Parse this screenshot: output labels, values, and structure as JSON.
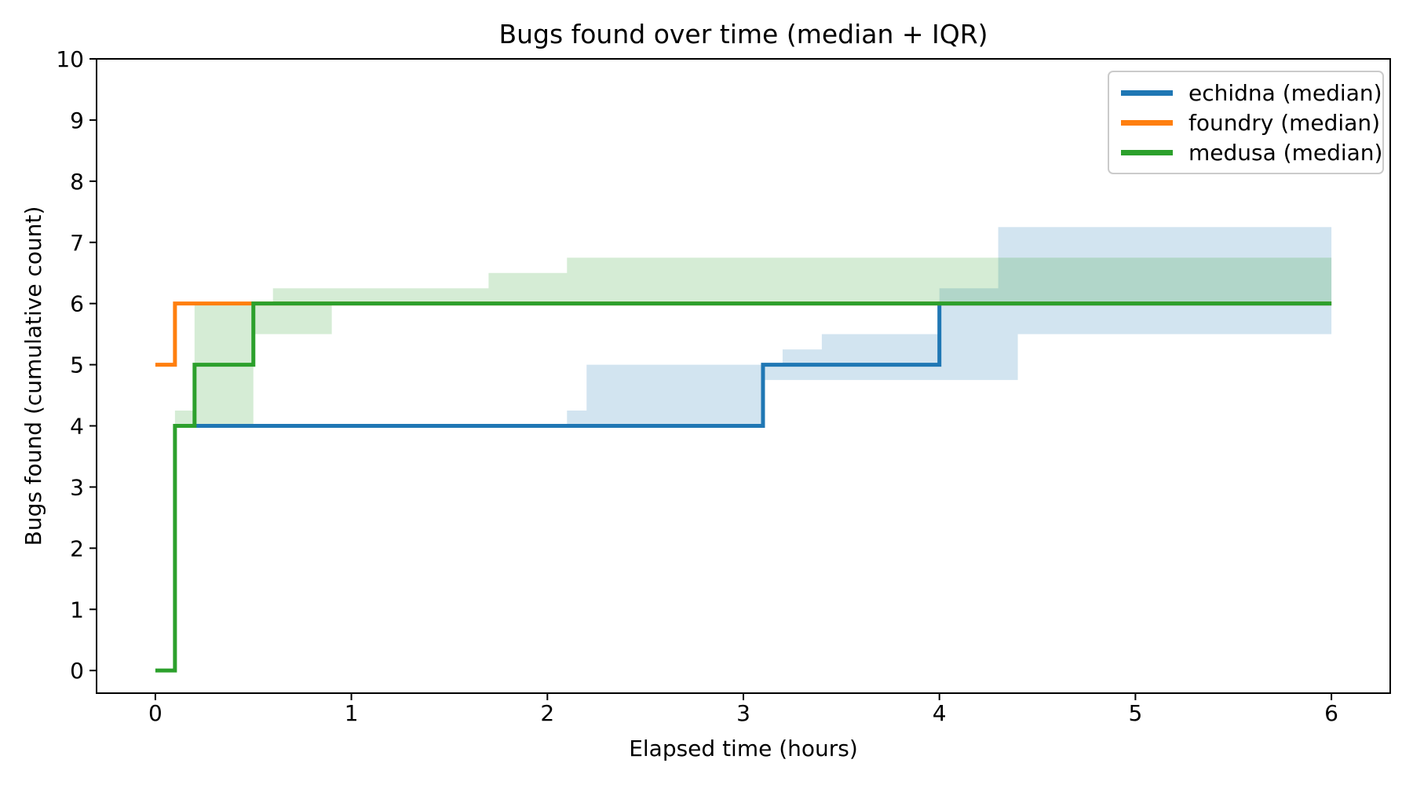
{
  "chart_data": {
    "type": "line",
    "step_mode": "post",
    "title": "Bugs found over time (median + IQR)",
    "xlabel": "Elapsed time (hours)",
    "ylabel": "Bugs found (cumulative count)",
    "xlim": [
      -0.3,
      6.3
    ],
    "ylim": [
      -0.37,
      10
    ],
    "xticks": [
      0,
      1,
      2,
      3,
      4,
      5,
      6
    ],
    "yticks": [
      0,
      1,
      2,
      3,
      4,
      5,
      6,
      7,
      8,
      9,
      10
    ],
    "grid": false,
    "legend_position": "upper right",
    "band_alpha": 0.2,
    "series": [
      {
        "name": "echidna (median)",
        "id": "echidna",
        "color": "#1f77b4",
        "median_steps": [
          [
            0.2,
            4
          ],
          [
            3.1,
            4
          ],
          [
            3.1,
            5
          ],
          [
            4.0,
            5
          ],
          [
            4.0,
            6
          ],
          [
            6.0,
            6
          ]
        ],
        "iqr_band": [
          [
            2.1,
            2.2,
            4.0,
            4.25
          ],
          [
            2.2,
            3.1,
            4.0,
            5.0
          ],
          [
            3.1,
            3.2,
            4.75,
            5.0
          ],
          [
            3.2,
            3.4,
            4.75,
            5.25
          ],
          [
            3.4,
            4.0,
            4.75,
            5.5
          ],
          [
            4.0,
            4.3,
            4.75,
            6.25
          ],
          [
            4.3,
            4.4,
            4.75,
            7.25
          ],
          [
            4.4,
            6.0,
            5.5,
            7.25
          ]
        ]
      },
      {
        "name": "foundry (median)",
        "id": "foundry",
        "color": "#ff7f0e",
        "median_steps": [
          [
            0.0,
            5
          ],
          [
            0.1,
            5
          ],
          [
            0.1,
            6
          ],
          [
            6.0,
            6
          ]
        ],
        "iqr_band": []
      },
      {
        "name": "medusa (median)",
        "id": "medusa",
        "color": "#2ca02c",
        "median_steps": [
          [
            0.0,
            0
          ],
          [
            0.1,
            0
          ],
          [
            0.1,
            4
          ],
          [
            0.2,
            4
          ],
          [
            0.2,
            5
          ],
          [
            0.5,
            5
          ],
          [
            0.5,
            6
          ],
          [
            6.0,
            6
          ]
        ],
        "iqr_band": [
          [
            0.1,
            0.2,
            4.0,
            4.25
          ],
          [
            0.2,
            0.5,
            4.0,
            6.0
          ],
          [
            0.5,
            0.6,
            5.5,
            6.0
          ],
          [
            0.6,
            0.9,
            5.5,
            6.25
          ],
          [
            0.9,
            1.7,
            6.0,
            6.25
          ],
          [
            1.7,
            2.1,
            6.0,
            6.5
          ],
          [
            2.1,
            6.0,
            6.0,
            6.75
          ]
        ]
      }
    ]
  }
}
